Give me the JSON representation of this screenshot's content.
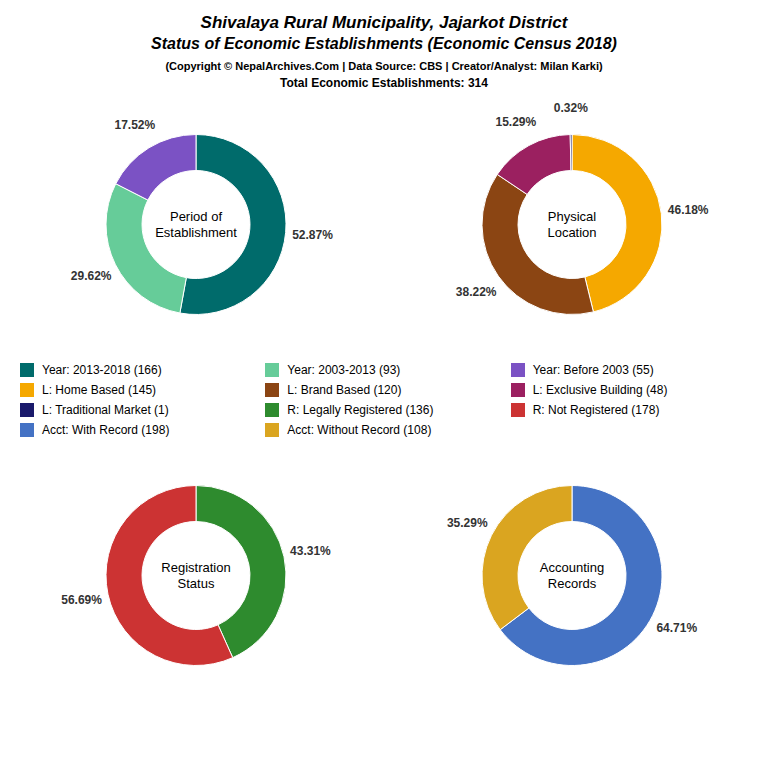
{
  "title": [
    "Shivalaya Rural Municipality, Jajarkot District",
    "Status of Economic Establishments (Economic Census 2018)"
  ],
  "subtitle": [
    "(Copyright © NepalArchives.Com | Data Source: CBS | Creator/Analyst: Milan Karki)",
    "Total Economic Establishments: 314"
  ],
  "chart_data": [
    {
      "type": "pie",
      "title": "Period of\nEstablishment",
      "categories": [
        "Year: 2013-2018 (166)",
        "Year: 2003-2013 (93)",
        "Year: Before 2003 (55)"
      ],
      "values": [
        52.87,
        29.62,
        17.52
      ],
      "value_labels": [
        "52.87%",
        "29.62%",
        "17.52%"
      ],
      "colors": [
        "#006B6B",
        "#66CC99",
        "#7B52C4"
      ],
      "data_labels": true
    },
    {
      "type": "pie",
      "title": "Physical\nLocation",
      "categories": [
        "L: Home Based (145)",
        "L: Brand Based (120)",
        "L: Exclusive Building (48)",
        "L: Traditional Market (1)"
      ],
      "values": [
        46.18,
        38.22,
        15.29,
        0.32
      ],
      "value_labels": [
        "46.18%",
        "38.22%",
        "15.29%",
        "0.32%"
      ],
      "colors": [
        "#F5A800",
        "#8B4513",
        "#9B2060",
        "#1A1A6B"
      ],
      "data_labels": true
    },
    {
      "type": "pie",
      "title": "Registration\nStatus",
      "categories": [
        "R: Legally Registered (136)",
        "R: Not Registered (178)"
      ],
      "values": [
        43.31,
        56.69
      ],
      "value_labels": [
        "43.31%",
        "56.69%"
      ],
      "colors": [
        "#2E8B2E",
        "#CC3333"
      ],
      "data_labels": true
    },
    {
      "type": "pie",
      "title": "Accounting\nRecords",
      "categories": [
        "Acct: With Record (198)",
        "Acct: Without Record (108)"
      ],
      "values": [
        64.71,
        35.29
      ],
      "value_labels": [
        "64.71%",
        "35.29%"
      ],
      "colors": [
        "#4472C4",
        "#DAA520"
      ],
      "data_labels": true
    }
  ]
}
